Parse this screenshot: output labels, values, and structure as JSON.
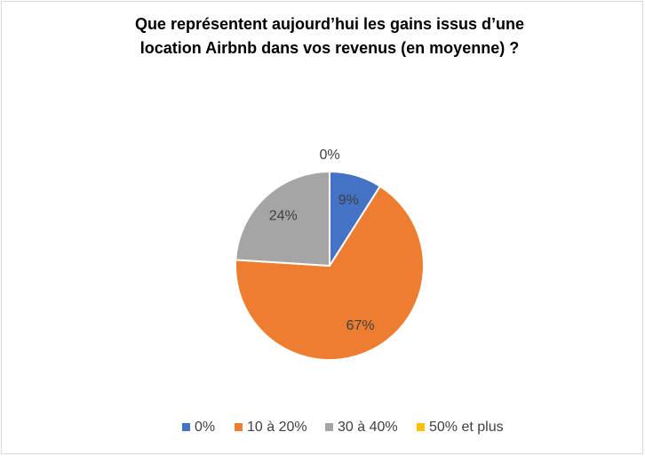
{
  "chart_data": {
    "type": "pie",
    "title": "Que représentent aujourd’hui les gains issus d’une location Airbnb dans vos revenus (en moyenne) ?",
    "categories": [
      "0%",
      "10 à 20%",
      "30 à 40%",
      "50% et plus"
    ],
    "values": [
      9,
      67,
      24,
      0
    ],
    "value_labels": [
      "9%",
      "67%",
      "24%",
      "0%"
    ],
    "colors": [
      "#4472c4",
      "#ed7d31",
      "#a5a5a5",
      "#ffc000"
    ],
    "legend": "bottom"
  }
}
